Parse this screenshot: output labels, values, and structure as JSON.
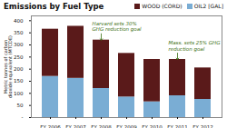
{
  "chart_data": {
    "type": "bar",
    "stacked": true,
    "title": "Emissions by Fuel Type",
    "ylabel": "Metric tonnes of carbon\ndioxide equivalent (MTCDE)",
    "categories": [
      "FY 2006",
      "FY 2007",
      "FY 2008",
      "FY 2009",
      "FY 2010",
      "FY 2011",
      "FY 2012"
    ],
    "series": [
      {
        "name": "OIL2 [GAL]",
        "color": "#7aadd4",
        "values": [
          170,
          162,
          120,
          85,
          65,
          90,
          75
        ]
      },
      {
        "name": "WOOD (CORD)",
        "color": "#5a1a1a",
        "values": [
          195,
          215,
          200,
          180,
          175,
          150,
          130
        ]
      }
    ],
    "ylim": [
      0,
      420
    ],
    "yticks": [
      {
        "value": 0,
        "label": "-"
      },
      50,
      100,
      150,
      200,
      250,
      300,
      350,
      400
    ],
    "grid": false,
    "legend": "upper right",
    "annotations": [
      {
        "text": "Harvard sets 30%\nGHG reduction goal",
        "category": "FY 2008",
        "color": "#3a6e10"
      },
      {
        "text": "Mass. sets 25% GHG\nreduction goal",
        "category": "FY 2011",
        "color": "#3a6e10"
      }
    ]
  }
}
